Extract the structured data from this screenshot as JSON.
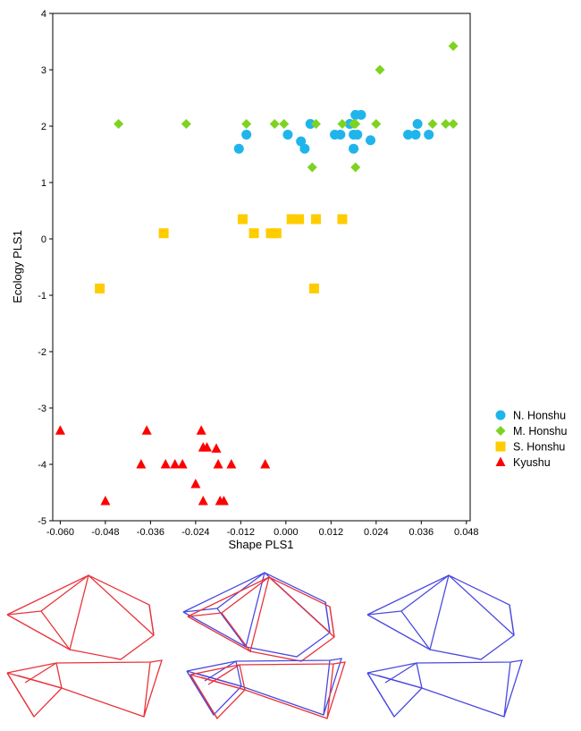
{
  "chart_data": {
    "type": "scatter",
    "xlabel": "Shape PLS1",
    "ylabel": "Ecology PLS1",
    "xlim": [
      -0.062,
      0.049
    ],
    "ylim": [
      -5,
      4
    ],
    "xticks": [
      "-0.060",
      "-0.048",
      "-0.036",
      "-0.024",
      "-0.012",
      "0.000",
      "0.012",
      "0.024",
      "0.036",
      "0.048"
    ],
    "xtick_values": [
      -0.06,
      -0.048,
      -0.036,
      -0.024,
      -0.012,
      0.0,
      0.012,
      0.024,
      0.036,
      0.048
    ],
    "yticks": [
      "-5",
      "-4",
      "-3",
      "-2",
      "-1",
      "0",
      "1",
      "2",
      "3",
      "4"
    ],
    "ytick_values": [
      -5,
      -4,
      -3,
      -2,
      -1,
      0,
      1,
      2,
      3,
      4
    ],
    "grid": false,
    "legend_position": "right",
    "series": [
      {
        "name": "N. Honshu",
        "marker": "circle",
        "color": "#1fb5ec",
        "points": [
          [
            -0.0125,
            1.6
          ],
          [
            -0.0105,
            1.85
          ],
          [
            0.0005,
            1.85
          ],
          [
            0.004,
            1.73
          ],
          [
            0.005,
            1.6
          ],
          [
            0.0065,
            2.04
          ],
          [
            0.013,
            1.85
          ],
          [
            0.0145,
            1.85
          ],
          [
            0.017,
            2.04
          ],
          [
            0.018,
            1.85
          ],
          [
            0.018,
            1.6
          ],
          [
            0.0185,
            2.2
          ],
          [
            0.02,
            2.2
          ],
          [
            0.019,
            1.85
          ],
          [
            0.0225,
            1.75
          ],
          [
            0.0325,
            1.85
          ],
          [
            0.0345,
            1.85
          ],
          [
            0.035,
            2.04
          ],
          [
            0.038,
            1.85
          ]
        ]
      },
      {
        "name": "M. Honshu",
        "marker": "diamond",
        "color": "#7ed321",
        "points": [
          [
            -0.0445,
            2.04
          ],
          [
            -0.0265,
            2.04
          ],
          [
            -0.0105,
            2.04
          ],
          [
            -0.003,
            2.04
          ],
          [
            -0.0005,
            2.04
          ],
          [
            0.007,
            1.27
          ],
          [
            0.008,
            2.04
          ],
          [
            0.015,
            2.04
          ],
          [
            0.018,
            2.04
          ],
          [
            0.0185,
            2.04
          ],
          [
            0.0185,
            1.27
          ],
          [
            0.024,
            2.04
          ],
          [
            0.025,
            3.0
          ],
          [
            0.039,
            2.04
          ],
          [
            0.0425,
            2.04
          ],
          [
            0.0445,
            3.42
          ],
          [
            0.0445,
            2.04
          ]
        ]
      },
      {
        "name": "S. Honshu",
        "marker": "square",
        "color": "#ffcc00",
        "points": [
          [
            -0.0495,
            -0.88
          ],
          [
            -0.0325,
            0.1
          ],
          [
            -0.0115,
            0.35
          ],
          [
            -0.0085,
            0.1
          ],
          [
            -0.004,
            0.1
          ],
          [
            -0.0025,
            0.1
          ],
          [
            0.0015,
            0.35
          ],
          [
            0.0035,
            0.35
          ],
          [
            0.0075,
            -0.88
          ],
          [
            0.008,
            0.35
          ],
          [
            0.015,
            0.35
          ]
        ]
      },
      {
        "name": "Kyushu",
        "marker": "triangle",
        "color": "#ff0000",
        "points": [
          [
            -0.06,
            -3.4
          ],
          [
            -0.048,
            -4.65
          ],
          [
            -0.0385,
            -4.0
          ],
          [
            -0.037,
            -3.4
          ],
          [
            -0.032,
            -4.0
          ],
          [
            -0.0295,
            -4.0
          ],
          [
            -0.0275,
            -4.0
          ],
          [
            -0.024,
            -4.35
          ],
          [
            -0.0225,
            -3.4
          ],
          [
            -0.022,
            -3.7
          ],
          [
            -0.021,
            -3.7
          ],
          [
            -0.022,
            -4.65
          ],
          [
            -0.0185,
            -3.72
          ],
          [
            -0.018,
            -4.0
          ],
          [
            -0.0175,
            -4.65
          ],
          [
            -0.0165,
            -4.65
          ],
          [
            -0.0145,
            -4.0
          ],
          [
            -0.0055,
            -4.0
          ]
        ]
      }
    ]
  },
  "wireframes": {
    "red_color": "#e8333a",
    "blue_color": "#4a4adf"
  }
}
